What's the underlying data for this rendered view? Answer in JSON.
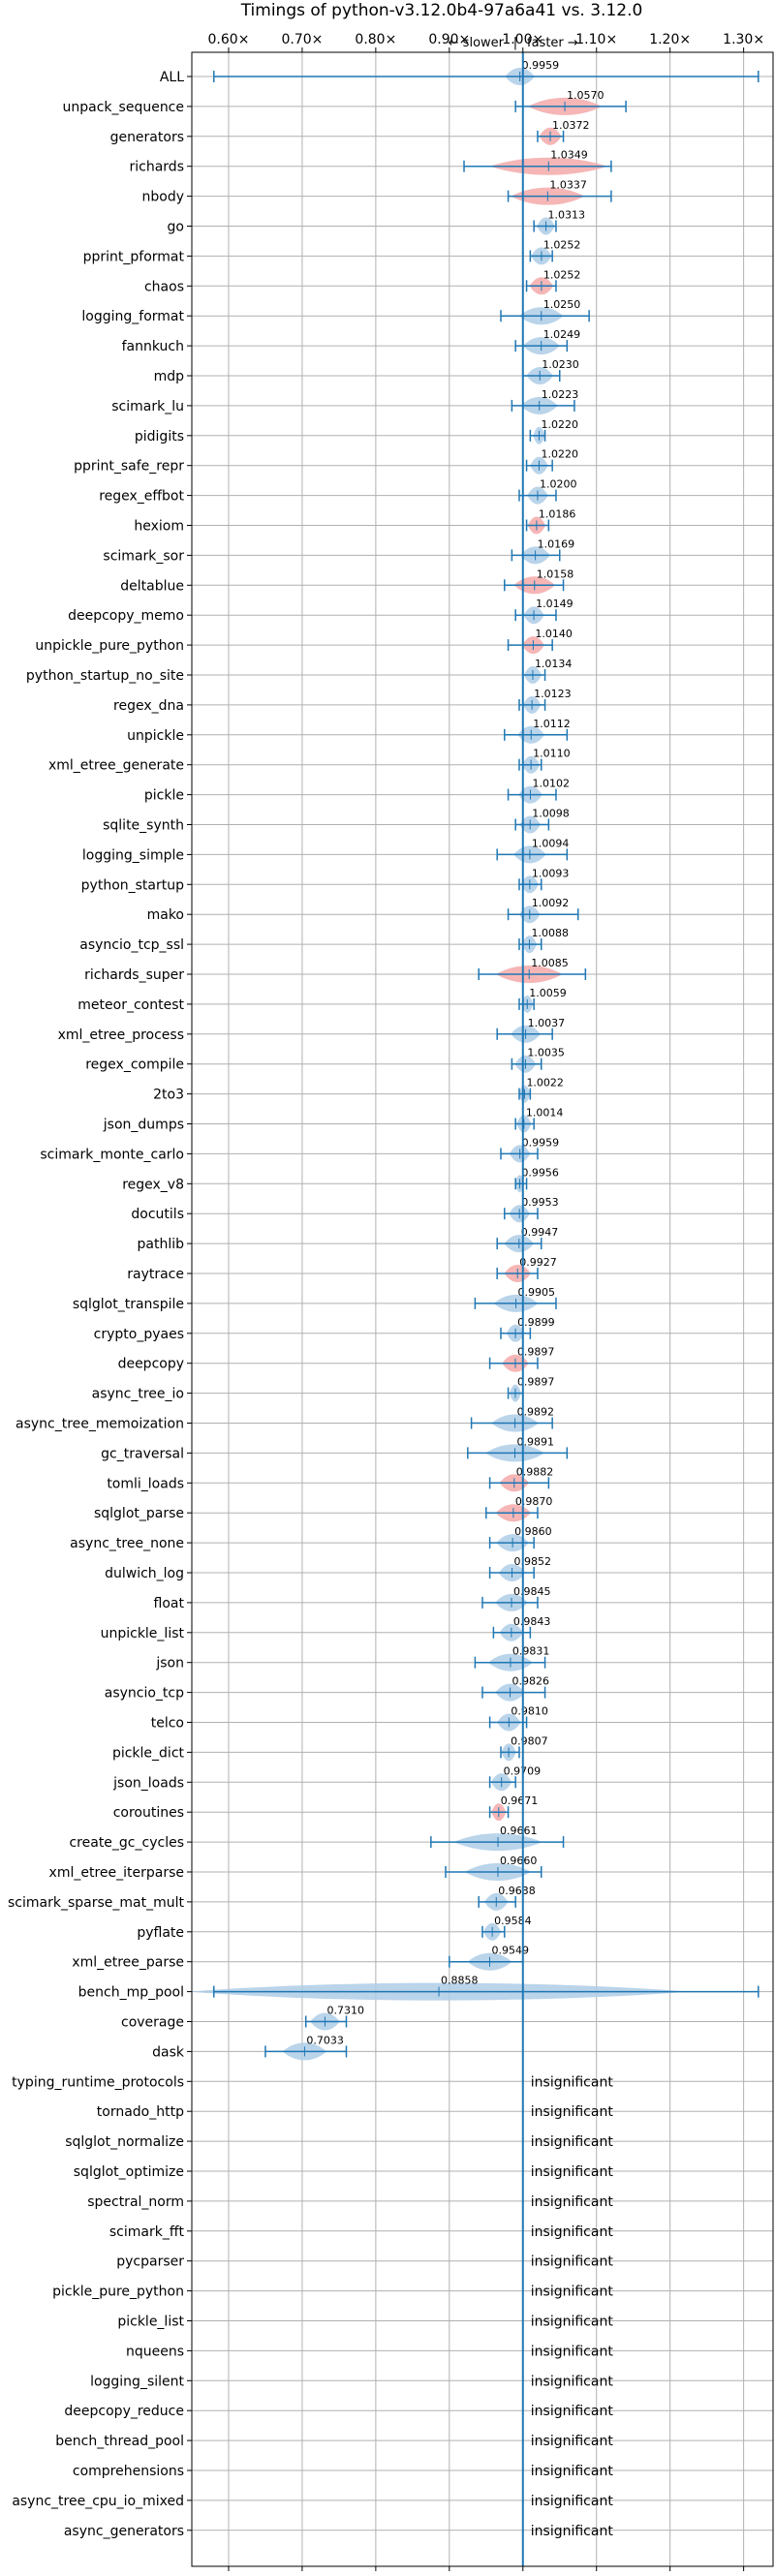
{
  "chart_data": {
    "type": "violin",
    "title": "Timings of python-v3.12.0b4-97a6a41 vs. 3.12.0",
    "direction_labels": {
      "slower": "← slower",
      "separator": "|",
      "faster": "faster →"
    },
    "xlim": [
      0.55,
      1.34
    ],
    "reference_line": 1.0,
    "grid": true,
    "x_ticks": [
      0.6,
      0.7,
      0.8,
      0.9,
      1.0,
      1.1,
      1.2,
      1.3
    ],
    "x_tick_labels": [
      "0.60×",
      "0.70×",
      "0.80×",
      "0.90×",
      "1.00×",
      "1.10×",
      "1.20×",
      "1.30×"
    ],
    "colors": {
      "faster": "#aecde6",
      "slower": "#f5a9a9",
      "line": "#1f77b4"
    },
    "insignificant_label": "insignificant",
    "benchmarks": [
      {
        "name": "ALL",
        "value": 0.9959,
        "label": "0.9959",
        "lo": 0.58,
        "hi": 1.32,
        "w": 0.02,
        "color": "faster"
      },
      {
        "name": "unpack_sequence",
        "value": 1.057,
        "label": "1.0570",
        "lo": 0.99,
        "hi": 1.14,
        "w": 0.05,
        "color": "slower"
      },
      {
        "name": "generators",
        "value": 1.0372,
        "label": "1.0372",
        "lo": 1.02,
        "hi": 1.055,
        "w": 0.015,
        "color": "slower"
      },
      {
        "name": "richards",
        "value": 1.0349,
        "label": "1.0349",
        "lo": 0.92,
        "hi": 1.12,
        "w": 0.08,
        "color": "slower"
      },
      {
        "name": "nbody",
        "value": 1.0337,
        "label": "1.0337",
        "lo": 0.98,
        "hi": 1.12,
        "w": 0.05,
        "color": "slower"
      },
      {
        "name": "go",
        "value": 1.0313,
        "label": "1.0313",
        "lo": 1.015,
        "hi": 1.045,
        "w": 0.012,
        "color": "faster"
      },
      {
        "name": "pprint_pformat",
        "value": 1.0252,
        "label": "1.0252",
        "lo": 1.01,
        "hi": 1.04,
        "w": 0.014,
        "color": "faster"
      },
      {
        "name": "chaos",
        "value": 1.0252,
        "label": "1.0252",
        "lo": 1.005,
        "hi": 1.045,
        "w": 0.016,
        "color": "slower"
      },
      {
        "name": "logging_format",
        "value": 1.025,
        "label": "1.0250",
        "lo": 0.97,
        "hi": 1.09,
        "w": 0.03,
        "color": "faster"
      },
      {
        "name": "fannkuch",
        "value": 1.0249,
        "label": "1.0249",
        "lo": 0.99,
        "hi": 1.06,
        "w": 0.025,
        "color": "faster"
      },
      {
        "name": "mdp",
        "value": 1.023,
        "label": "1.0230",
        "lo": 1.0,
        "hi": 1.05,
        "w": 0.018,
        "color": "faster"
      },
      {
        "name": "scimark_lu",
        "value": 1.0223,
        "label": "1.0223",
        "lo": 0.985,
        "hi": 1.07,
        "w": 0.025,
        "color": "faster"
      },
      {
        "name": "pidigits",
        "value": 1.022,
        "label": "1.0220",
        "lo": 1.01,
        "hi": 1.03,
        "w": 0.008,
        "color": "faster"
      },
      {
        "name": "pprint_safe_repr",
        "value": 1.022,
        "label": "1.0220",
        "lo": 1.005,
        "hi": 1.04,
        "w": 0.012,
        "color": "faster"
      },
      {
        "name": "regex_effbot",
        "value": 1.02,
        "label": "1.0200",
        "lo": 0.995,
        "hi": 1.045,
        "w": 0.014,
        "color": "faster"
      },
      {
        "name": "hexiom",
        "value": 1.0186,
        "label": "1.0186",
        "lo": 1.005,
        "hi": 1.035,
        "w": 0.012,
        "color": "slower"
      },
      {
        "name": "scimark_sor",
        "value": 1.0169,
        "label": "1.0169",
        "lo": 0.985,
        "hi": 1.05,
        "w": 0.02,
        "color": "faster"
      },
      {
        "name": "deltablue",
        "value": 1.0158,
        "label": "1.0158",
        "lo": 0.975,
        "hi": 1.055,
        "w": 0.028,
        "color": "slower"
      },
      {
        "name": "deepcopy_memo",
        "value": 1.0149,
        "label": "1.0149",
        "lo": 0.99,
        "hi": 1.045,
        "w": 0.014,
        "color": "faster"
      },
      {
        "name": "unpickle_pure_python",
        "value": 1.014,
        "label": "1.0140",
        "lo": 0.98,
        "hi": 1.04,
        "w": 0.015,
        "color": "slower"
      },
      {
        "name": "python_startup_no_site",
        "value": 1.0134,
        "label": "1.0134",
        "lo": 1.0,
        "hi": 1.03,
        "w": 0.012,
        "color": "faster"
      },
      {
        "name": "regex_dna",
        "value": 1.0123,
        "label": "1.0123",
        "lo": 0.995,
        "hi": 1.03,
        "w": 0.012,
        "color": "faster"
      },
      {
        "name": "unpickle",
        "value": 1.0112,
        "label": "1.0112",
        "lo": 0.975,
        "hi": 1.06,
        "w": 0.018,
        "color": "faster"
      },
      {
        "name": "xml_etree_generate",
        "value": 1.011,
        "label": "1.0110",
        "lo": 0.995,
        "hi": 1.025,
        "w": 0.012,
        "color": "faster"
      },
      {
        "name": "pickle",
        "value": 1.0102,
        "label": "1.0102",
        "lo": 0.98,
        "hi": 1.045,
        "w": 0.016,
        "color": "faster"
      },
      {
        "name": "sqlite_synth",
        "value": 1.0098,
        "label": "1.0098",
        "lo": 0.99,
        "hi": 1.035,
        "w": 0.014,
        "color": "faster"
      },
      {
        "name": "logging_simple",
        "value": 1.0094,
        "label": "1.0094",
        "lo": 0.965,
        "hi": 1.06,
        "w": 0.022,
        "color": "faster"
      },
      {
        "name": "python_startup",
        "value": 1.0093,
        "label": "1.0093",
        "lo": 0.995,
        "hi": 1.025,
        "w": 0.012,
        "color": "faster"
      },
      {
        "name": "mako",
        "value": 1.0092,
        "label": "1.0092",
        "lo": 0.98,
        "hi": 1.075,
        "w": 0.014,
        "color": "faster"
      },
      {
        "name": "asyncio_tcp_ssl",
        "value": 1.0088,
        "label": "1.0088",
        "lo": 0.995,
        "hi": 1.025,
        "w": 0.01,
        "color": "faster"
      },
      {
        "name": "richards_super",
        "value": 1.0085,
        "label": "1.0085",
        "lo": 0.94,
        "hi": 1.085,
        "w": 0.045,
        "color": "slower"
      },
      {
        "name": "meteor_contest",
        "value": 1.0059,
        "label": "1.0059",
        "lo": 0.995,
        "hi": 1.015,
        "w": 0.008,
        "color": "faster"
      },
      {
        "name": "xml_etree_process",
        "value": 1.0037,
        "label": "1.0037",
        "lo": 0.965,
        "hi": 1.04,
        "w": 0.02,
        "color": "faster"
      },
      {
        "name": "regex_compile",
        "value": 1.0035,
        "label": "1.0035",
        "lo": 0.985,
        "hi": 1.025,
        "w": 0.014,
        "color": "faster"
      },
      {
        "name": "2to3",
        "value": 1.0022,
        "label": "1.0022",
        "lo": 0.995,
        "hi": 1.01,
        "w": 0.008,
        "color": "faster"
      },
      {
        "name": "json_dumps",
        "value": 1.0014,
        "label": "1.0014",
        "lo": 0.99,
        "hi": 1.015,
        "w": 0.01,
        "color": "faster"
      },
      {
        "name": "scimark_monte_carlo",
        "value": 0.9959,
        "label": "0.9959",
        "lo": 0.97,
        "hi": 1.02,
        "w": 0.014,
        "color": "faster"
      },
      {
        "name": "regex_v8",
        "value": 0.9956,
        "label": "0.9956",
        "lo": 0.99,
        "hi": 1.005,
        "w": 0.006,
        "color": "faster"
      },
      {
        "name": "docutils",
        "value": 0.9953,
        "label": "0.9953",
        "lo": 0.975,
        "hi": 1.02,
        "w": 0.014,
        "color": "faster"
      },
      {
        "name": "pathlib",
        "value": 0.9947,
        "label": "0.9947",
        "lo": 0.965,
        "hi": 1.025,
        "w": 0.02,
        "color": "faster"
      },
      {
        "name": "raytrace",
        "value": 0.9927,
        "label": "0.9927",
        "lo": 0.965,
        "hi": 1.02,
        "w": 0.018,
        "color": "slower"
      },
      {
        "name": "sqlglot_transpile",
        "value": 0.9905,
        "label": "0.9905",
        "lo": 0.935,
        "hi": 1.045,
        "w": 0.03,
        "color": "faster"
      },
      {
        "name": "crypto_pyaes",
        "value": 0.9899,
        "label": "0.9899",
        "lo": 0.97,
        "hi": 1.01,
        "w": 0.012,
        "color": "faster"
      },
      {
        "name": "deepcopy",
        "value": 0.9897,
        "label": "0.9897",
        "lo": 0.955,
        "hi": 1.02,
        "w": 0.018,
        "color": "slower"
      },
      {
        "name": "async_tree_io",
        "value": 0.9897,
        "label": "0.9897",
        "lo": 0.98,
        "hi": 1.0,
        "w": 0.008,
        "color": "faster"
      },
      {
        "name": "async_tree_memoization",
        "value": 0.9892,
        "label": "0.9892",
        "lo": 0.93,
        "hi": 1.04,
        "w": 0.032,
        "color": "faster"
      },
      {
        "name": "gc_traversal",
        "value": 0.9891,
        "label": "0.9891",
        "lo": 0.925,
        "hi": 1.06,
        "w": 0.04,
        "color": "faster"
      },
      {
        "name": "tomli_loads",
        "value": 0.9882,
        "label": "0.9882",
        "lo": 0.955,
        "hi": 1.035,
        "w": 0.02,
        "color": "slower"
      },
      {
        "name": "sqlglot_parse",
        "value": 0.987,
        "label": "0.9870",
        "lo": 0.95,
        "hi": 1.02,
        "w": 0.024,
        "color": "slower"
      },
      {
        "name": "async_tree_none",
        "value": 0.986,
        "label": "0.9860",
        "lo": 0.955,
        "hi": 1.015,
        "w": 0.022,
        "color": "faster"
      },
      {
        "name": "dulwich_log",
        "value": 0.9852,
        "label": "0.9852",
        "lo": 0.955,
        "hi": 1.015,
        "w": 0.018,
        "color": "faster"
      },
      {
        "name": "float",
        "value": 0.9845,
        "label": "0.9845",
        "lo": 0.945,
        "hi": 1.02,
        "w": 0.022,
        "color": "faster"
      },
      {
        "name": "unpickle_list",
        "value": 0.9843,
        "label": "0.9843",
        "lo": 0.96,
        "hi": 1.01,
        "w": 0.016,
        "color": "faster"
      },
      {
        "name": "json",
        "value": 0.9831,
        "label": "0.9831",
        "lo": 0.935,
        "hi": 1.03,
        "w": 0.03,
        "color": "faster"
      },
      {
        "name": "asyncio_tcp",
        "value": 0.9826,
        "label": "0.9826",
        "lo": 0.945,
        "hi": 1.03,
        "w": 0.02,
        "color": "faster"
      },
      {
        "name": "telco",
        "value": 0.981,
        "label": "0.9810",
        "lo": 0.955,
        "hi": 1.005,
        "w": 0.016,
        "color": "faster"
      },
      {
        "name": "pickle_dict",
        "value": 0.9807,
        "label": "0.9807",
        "lo": 0.97,
        "hi": 0.995,
        "w": 0.01,
        "color": "faster"
      },
      {
        "name": "json_loads",
        "value": 0.9709,
        "label": "0.9709",
        "lo": 0.955,
        "hi": 0.99,
        "w": 0.014,
        "color": "faster"
      },
      {
        "name": "coroutines",
        "value": 0.9671,
        "label": "0.9671",
        "lo": 0.955,
        "hi": 0.98,
        "w": 0.01,
        "color": "slower"
      },
      {
        "name": "create_gc_cycles",
        "value": 0.9661,
        "label": "0.9661",
        "lo": 0.875,
        "hi": 1.055,
        "w": 0.06,
        "color": "faster"
      },
      {
        "name": "xml_etree_iterparse",
        "value": 0.966,
        "label": "0.9660",
        "lo": 0.895,
        "hi": 1.025,
        "w": 0.045,
        "color": "faster"
      },
      {
        "name": "scimark_sparse_mat_mult",
        "value": 0.9638,
        "label": "0.9638",
        "lo": 0.94,
        "hi": 0.99,
        "w": 0.016,
        "color": "faster"
      },
      {
        "name": "pyflate",
        "value": 0.9584,
        "label": "0.9584",
        "lo": 0.945,
        "hi": 0.975,
        "w": 0.012,
        "color": "faster"
      },
      {
        "name": "xml_etree_parse",
        "value": 0.9549,
        "label": "0.9549",
        "lo": 0.9,
        "hi": 1.0,
        "w": 0.03,
        "color": "faster"
      },
      {
        "name": "bench_mp_pool",
        "value": 0.8858,
        "label": "0.8858",
        "lo": 0.58,
        "hi": 1.32,
        "w": 0.34,
        "color": "faster"
      },
      {
        "name": "coverage",
        "value": 0.731,
        "label": "0.7310",
        "lo": 0.705,
        "hi": 0.76,
        "w": 0.02,
        "color": "faster"
      },
      {
        "name": "dask",
        "value": 0.7033,
        "label": "0.7033",
        "lo": 0.65,
        "hi": 0.76,
        "w": 0.03,
        "color": "faster"
      },
      {
        "name": "typing_runtime_protocols",
        "insignificant": true
      },
      {
        "name": "tornado_http",
        "insignificant": true
      },
      {
        "name": "sqlglot_normalize",
        "insignificant": true
      },
      {
        "name": "sqlglot_optimize",
        "insignificant": true
      },
      {
        "name": "spectral_norm",
        "insignificant": true
      },
      {
        "name": "scimark_fft",
        "insignificant": true
      },
      {
        "name": "pycparser",
        "insignificant": true
      },
      {
        "name": "pickle_pure_python",
        "insignificant": true
      },
      {
        "name": "pickle_list",
        "insignificant": true
      },
      {
        "name": "nqueens",
        "insignificant": true
      },
      {
        "name": "logging_silent",
        "insignificant": true
      },
      {
        "name": "deepcopy_reduce",
        "insignificant": true
      },
      {
        "name": "bench_thread_pool",
        "insignificant": true
      },
      {
        "name": "comprehensions",
        "insignificant": true
      },
      {
        "name": "async_tree_cpu_io_mixed",
        "insignificant": true
      },
      {
        "name": "async_generators",
        "insignificant": true
      }
    ]
  }
}
